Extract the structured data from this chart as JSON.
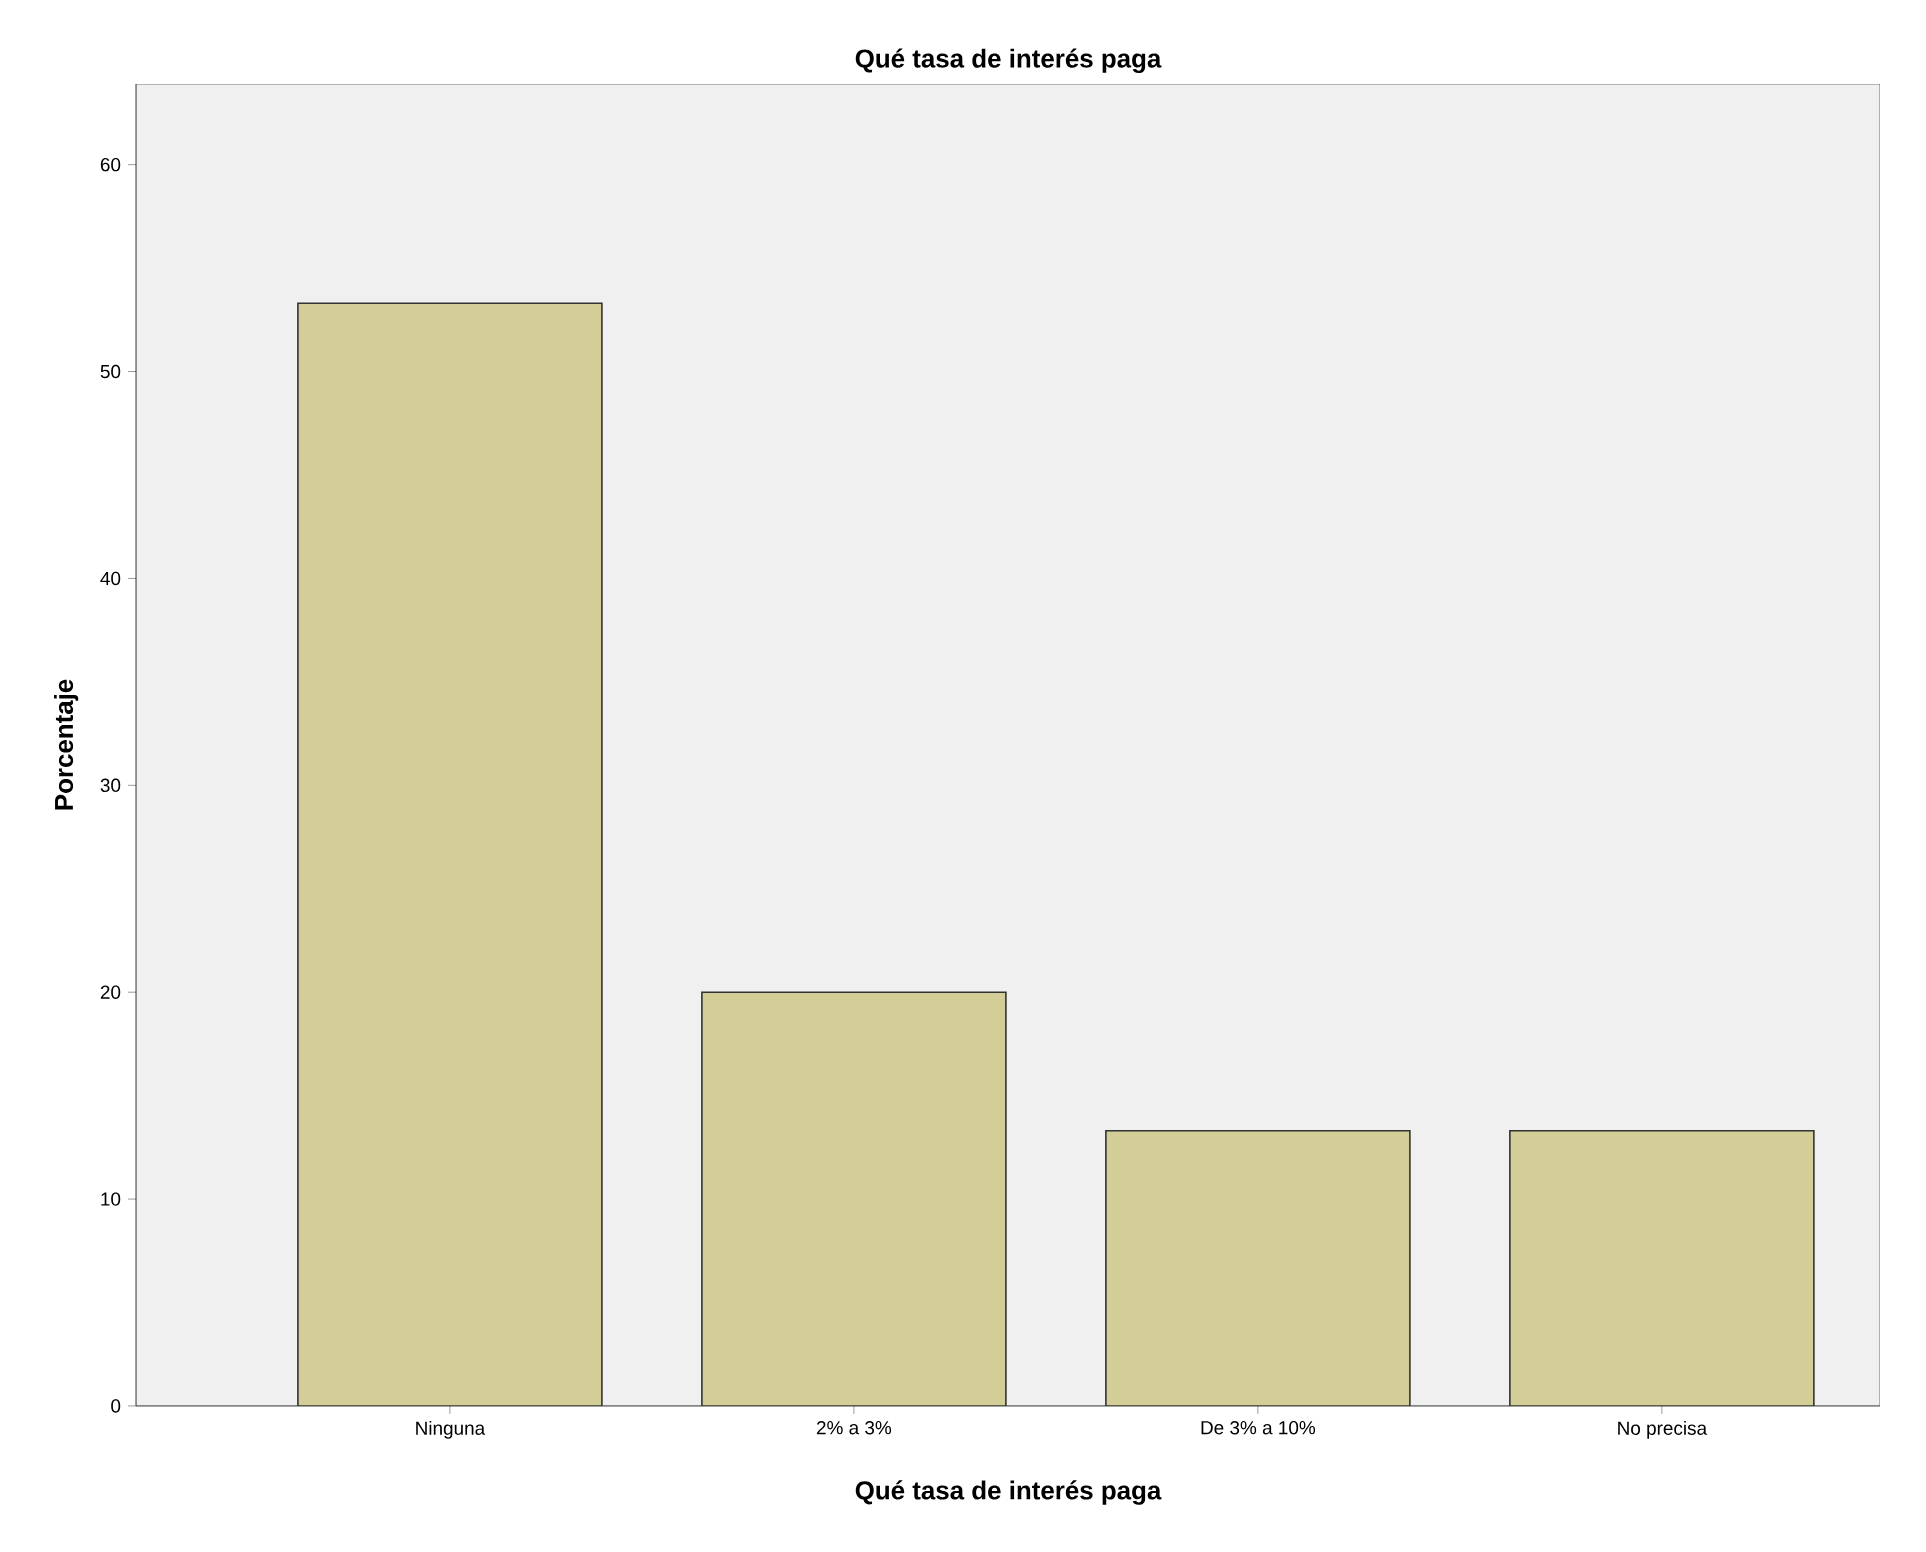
{
  "chart_data": {
    "type": "bar",
    "title": "Qué tasa de interés paga",
    "xlabel": "Qué tasa de interés paga",
    "ylabel": "Porcentaje",
    "categories": [
      "Ninguna",
      "2% a 3%",
      "De 3% a 10%",
      "No precisa"
    ],
    "values": [
      53.3,
      20.0,
      13.3,
      13.3
    ],
    "color": "#d3ce97",
    "ylim": [
      0,
      63.9
    ],
    "yticks": [
      0,
      10,
      20,
      30,
      40,
      50,
      60
    ]
  }
}
